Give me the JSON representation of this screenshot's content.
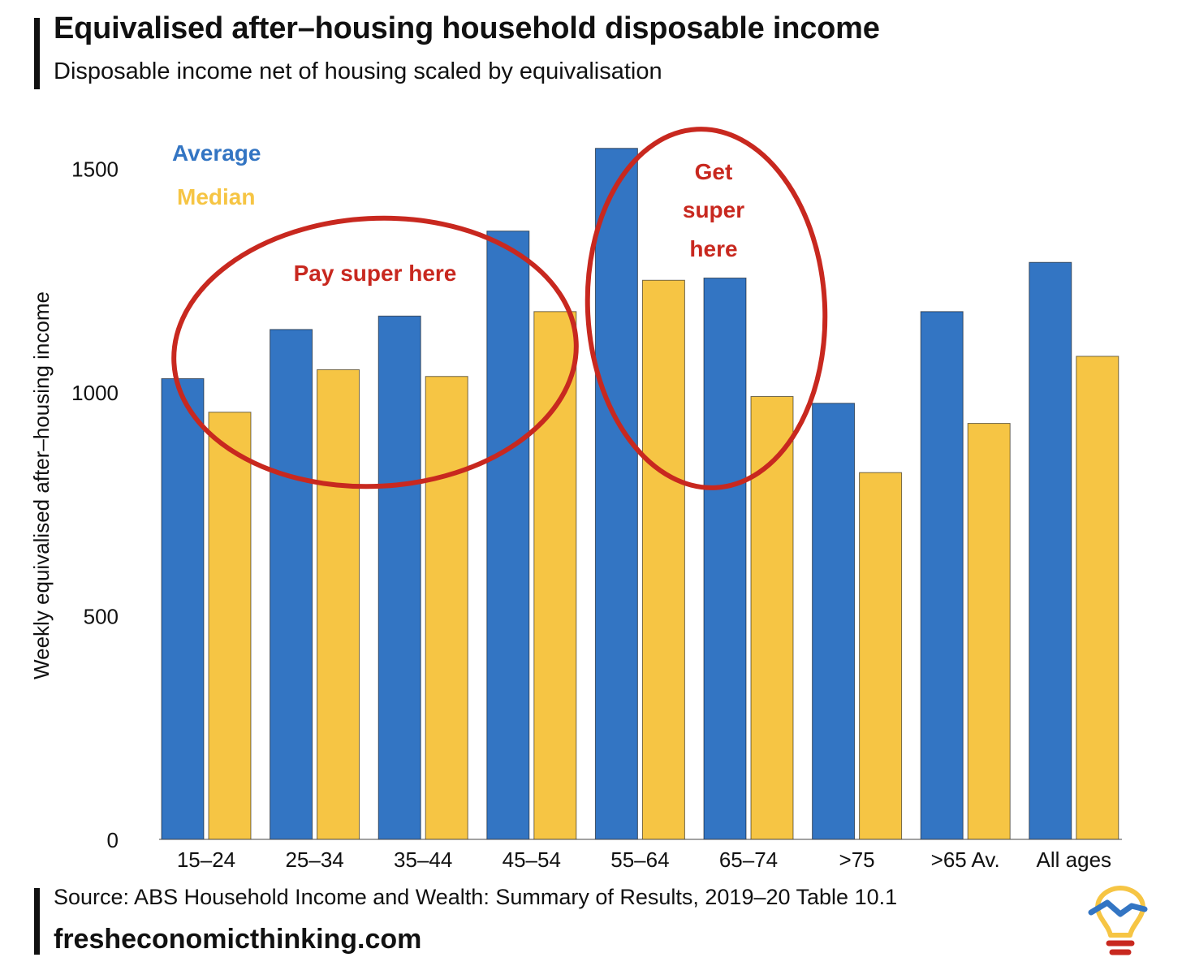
{
  "header": {
    "title": "Equivalised after–housing household disposable income",
    "subtitle": "Disposable income net of housing scaled by equivalisation"
  },
  "footer": {
    "source": "Source: ABS Household Income and Wealth: Summary of Results, 2019–20 Table 10.1",
    "website": "fresheconomicthinking.com"
  },
  "colors": {
    "average": "#3375c3",
    "median": "#f6c544",
    "annotation": "#c8281f",
    "text": "#111111"
  },
  "logo": {
    "icon": "lightbulb-logo-icon"
  },
  "chart_data": {
    "type": "bar",
    "title": "Equivalised after–housing household disposable income",
    "xlabel": "",
    "ylabel": "Weekly equivalised after–housing income",
    "ylim": [
      0,
      1650
    ],
    "yticks": [
      0,
      500,
      1000,
      1500
    ],
    "categories": [
      "15–24",
      "25–34",
      "35–44",
      "45–54",
      "55–64",
      "65–74",
      ">75",
      ">65 Av.",
      "All ages"
    ],
    "series": [
      {
        "name": "Average",
        "values": [
          1030,
          1140,
          1170,
          1360,
          1545,
          1255,
          975,
          1180,
          1290
        ]
      },
      {
        "name": "Median",
        "values": [
          955,
          1050,
          1035,
          1180,
          1250,
          990,
          820,
          930,
          1080
        ]
      }
    ],
    "legend": [
      "Average",
      "Median"
    ],
    "legend_position": "top-left",
    "grid": false,
    "annotations": [
      {
        "text": "Pay super here",
        "categories": [
          "15–24",
          "25–34",
          "35–44",
          "45–54"
        ]
      },
      {
        "text": "Get super here",
        "lines": [
          "Get",
          "super",
          "here"
        ],
        "categories": [
          "55–64",
          "65–74"
        ]
      }
    ]
  }
}
